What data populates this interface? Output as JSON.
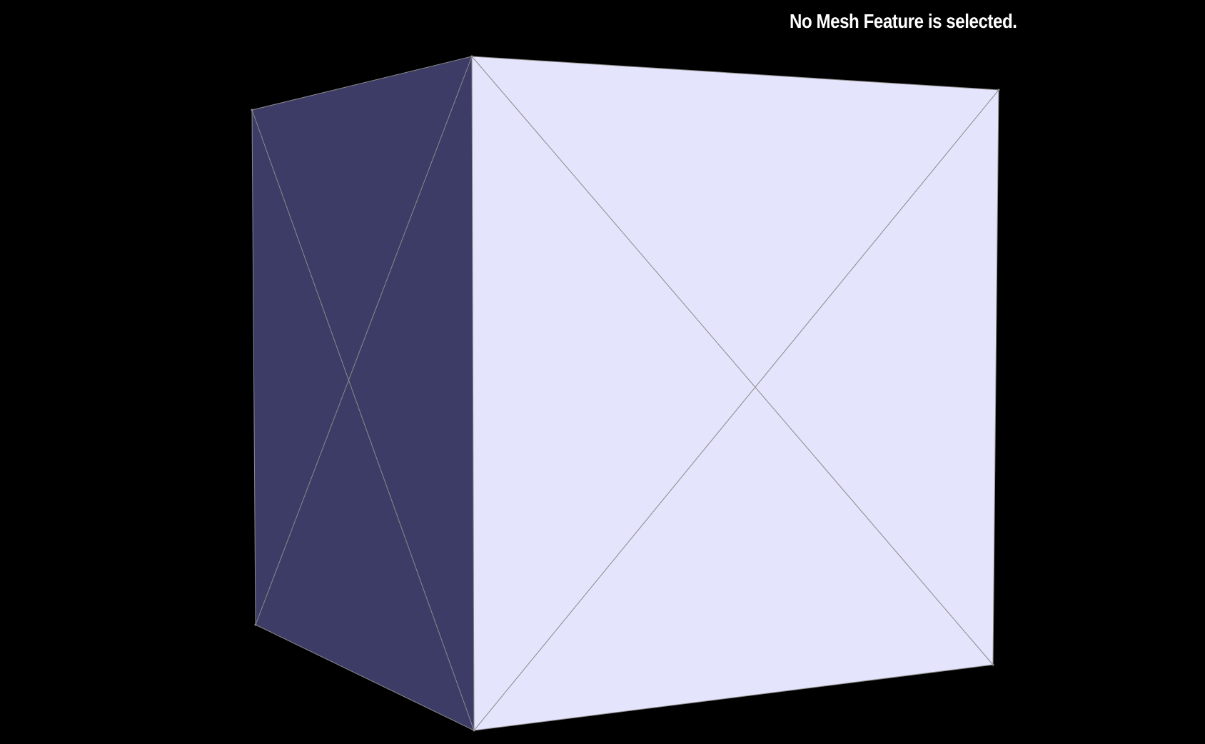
{
  "viewport": {
    "status_message": "No Mesh Feature is selected.",
    "background_color": "#000000"
  },
  "mesh": {
    "shape": "cube",
    "face_colors": {
      "front": "#e4e4fc",
      "side": "#3c3c66"
    },
    "wireframe_color": "#8a8a8a",
    "selected_feature": null
  }
}
